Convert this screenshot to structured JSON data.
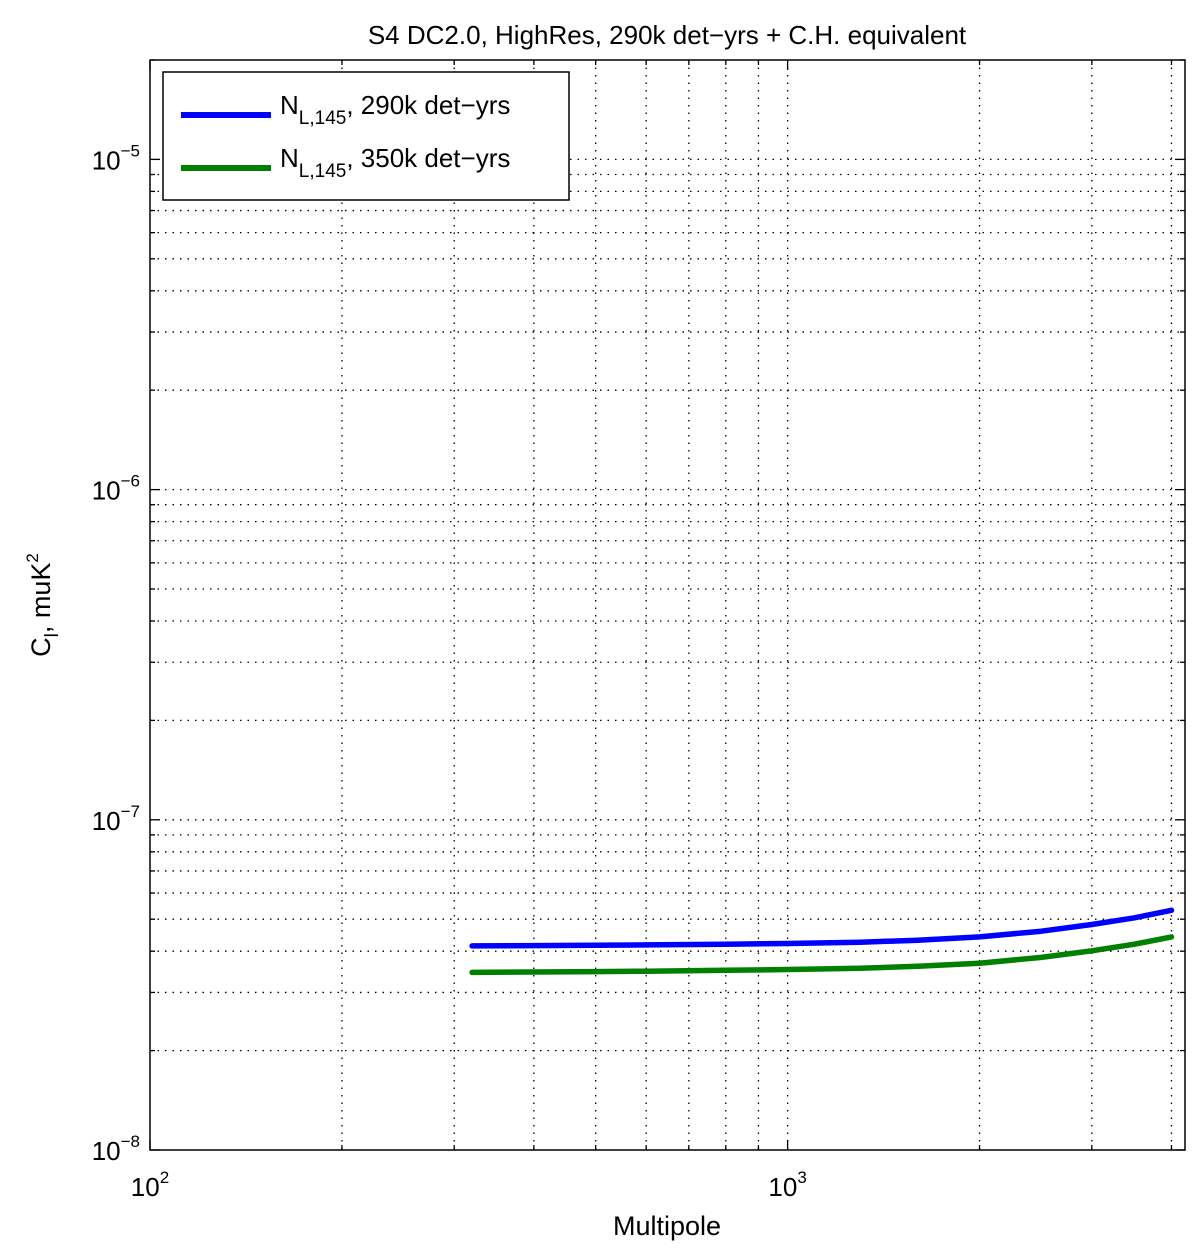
{
  "chart_data": {
    "type": "line",
    "title": "S4 DC2.0, HighRes, 290k det−yrs + C.H. equivalent",
    "xlabel": "Multipole",
    "ylabel": {
      "main": "C",
      "sub": "l",
      "rest": ", muK",
      "sup": "2"
    },
    "xscale": "log",
    "yscale": "log",
    "xlim": [
      100,
      4200
    ],
    "ylim": [
      1e-08,
      2e-05
    ],
    "grid": true,
    "legend_position": "top-left",
    "x_ticks": [
      {
        "value": 100,
        "base": "10",
        "exp": "2"
      },
      {
        "value": 1000,
        "base": "10",
        "exp": "3"
      }
    ],
    "y_ticks": [
      {
        "value": 1e-08,
        "base": "10",
        "exp": "−8"
      },
      {
        "value": 1e-07,
        "base": "10",
        "exp": "−7"
      },
      {
        "value": 1e-06,
        "base": "10",
        "exp": "−6"
      },
      {
        "value": 1e-05,
        "base": "10",
        "exp": "−5"
      }
    ],
    "series": [
      {
        "name": "N_{L,145}, 290k det-yrs",
        "label_main": "N",
        "label_sub": "L,145",
        "label_rest": ", 290k det−yrs",
        "color": "#0000ff",
        "x": [
          320,
          400,
          500,
          600,
          800,
          1000,
          1300,
          1600,
          2000,
          2500,
          3000,
          3500,
          4000
        ],
        "y": [
          4.15e-08,
          4.16e-08,
          4.17e-08,
          4.18e-08,
          4.2e-08,
          4.22e-08,
          4.26e-08,
          4.32e-08,
          4.42e-08,
          4.6e-08,
          4.82e-08,
          5.05e-08,
          5.32e-08
        ]
      },
      {
        "name": "N_{L,145}, 350k det-yrs",
        "label_main": "N",
        "label_sub": "L,145",
        "label_rest": ", 350k det−yrs",
        "color": "#008000",
        "x": [
          320,
          400,
          500,
          600,
          800,
          1000,
          1300,
          1600,
          2000,
          2500,
          3000,
          3500,
          4000
        ],
        "y": [
          3.45e-08,
          3.46e-08,
          3.47e-08,
          3.48e-08,
          3.5e-08,
          3.52e-08,
          3.55e-08,
          3.6e-08,
          3.68e-08,
          3.83e-08,
          4.01e-08,
          4.2e-08,
          4.42e-08
        ]
      }
    ]
  }
}
